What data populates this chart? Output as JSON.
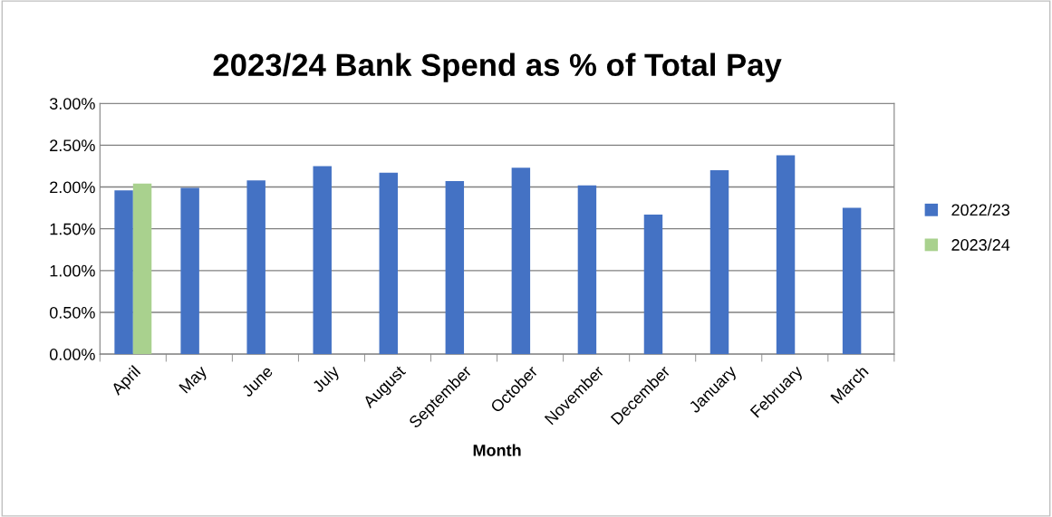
{
  "chart_data": {
    "type": "bar",
    "title": "2023/24 Bank Spend as % of Total Pay",
    "xlabel": "Month",
    "categories": [
      "April",
      "May",
      "June",
      "July",
      "August",
      "September",
      "October",
      "November",
      "December",
      "January",
      "February",
      "March"
    ],
    "series": [
      {
        "name": "2022/23",
        "color": "#4472c4",
        "values": [
          1.96,
          1.99,
          2.08,
          2.25,
          2.17,
          2.07,
          2.23,
          2.02,
          1.67,
          2.2,
          2.38,
          1.75
        ]
      },
      {
        "name": "2023/24",
        "color": "#a9d18e",
        "values": [
          2.04,
          null,
          null,
          null,
          null,
          null,
          null,
          null,
          null,
          null,
          null,
          null
        ]
      }
    ],
    "ylim": [
      0,
      3
    ],
    "yticks": [
      {
        "value": 0,
        "label": "0.00%"
      },
      {
        "value": 0.5,
        "label": "0.50%"
      },
      {
        "value": 1,
        "label": "1.00%"
      },
      {
        "value": 1.5,
        "label": "1.50%"
      },
      {
        "value": 2,
        "label": "2.00%"
      },
      {
        "value": 2.5,
        "label": "2.50%"
      },
      {
        "value": 3,
        "label": "3.00%"
      }
    ],
    "grid": "y",
    "legend": "right"
  }
}
